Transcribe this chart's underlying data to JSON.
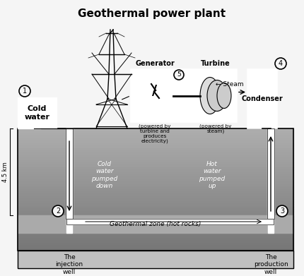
{
  "title": "Geothermal power plant",
  "title_fontsize": 11,
  "bg_color": "#f5f5f5",
  "labels": {
    "cold_water": "Cold\nwater",
    "generator": "Generator",
    "turbine": "Turbine",
    "condenser": "Condenser",
    "steam": "← Steam",
    "cold_water_down": "Cold\nwater\npumped\ndown",
    "hot_water_up": "Hot\nwater\npumped\nup",
    "geothermal_zone": "Geothermal zone (hot rocks)",
    "injection_well": "The\ninjection\nwell",
    "production_well": "The\nproduction\nwell",
    "gen_sub": "(powered by\nturbine and\nproduces\nelectricity)",
    "turb_sub": "(powered by\nsteam)",
    "depth": "4.5 km",
    "num1": "1",
    "num2": "2",
    "num3": "3",
    "num4": "4",
    "num5": "5"
  },
  "figsize": [
    4.3,
    3.91
  ],
  "dpi": 100
}
